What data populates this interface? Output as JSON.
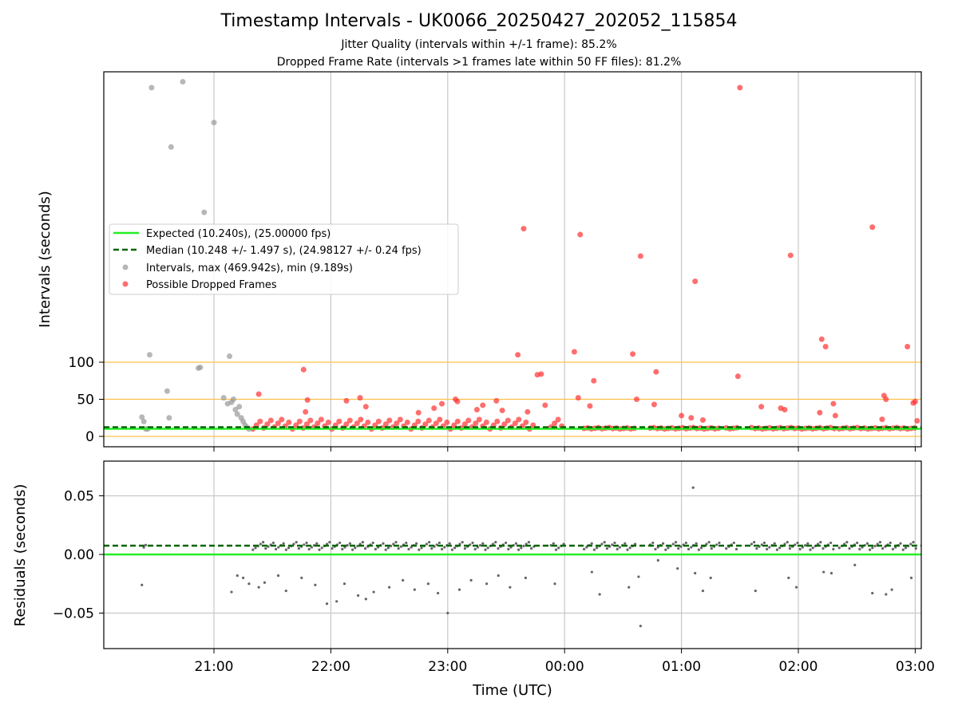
{
  "title": "Timestamp Intervals - UK0066_20250427_202052_115854",
  "subtitle_1": "Jitter Quality (intervals within +/-1 frame): 85.2%",
  "subtitle_2": "Dropped Frame Rate (intervals >1 frames late within 50 FF files): 81.2%",
  "colors": {
    "expected": "#22ee22",
    "median": "#006400",
    "intervals": "#999999",
    "dropped": "#ff3030",
    "threshold": "#ffc04d",
    "grid": "#c8c8c8",
    "residuals": "#666666"
  },
  "chart_data": [
    {
      "type": "scatter",
      "xlabel": "",
      "ylabel": "Intervals (seconds)",
      "y_ticks": [
        0,
        50,
        100
      ],
      "x_ticks": [
        "21:00",
        "22:00",
        "23:00",
        "00:00",
        "01:00",
        "02:00",
        "03:00"
      ],
      "threshold_lines": [
        0,
        50,
        100
      ],
      "legend": {
        "placement": "center-left",
        "entries": [
          "Expected (10.240s), (25.00000 fps)",
          "Median (10.248 +/- 1.497 s), (24.98127 +/- 0.24 fps)",
          "Intervals, max (469.942s), min (9.189s)",
          "Possible Dropped Frames"
        ]
      },
      "expected_line": 10.24,
      "median_line": 10.248,
      "series": [
        {
          "name": "Intervals, max (469.942s), min (9.189s)",
          "points": [
            [
              "20:23",
              26
            ],
            [
              "20:24",
              20
            ],
            [
              "20:25",
              10
            ],
            [
              "20:26",
              10
            ],
            [
              "20:27",
              110
            ],
            [
              "20:28",
              470
            ],
            [
              "20:36",
              61
            ],
            [
              "20:37",
              25
            ],
            [
              "20:38",
              390
            ],
            [
              "20:44",
              478
            ],
            [
              "20:52",
              92
            ],
            [
              "20:53",
              93
            ],
            [
              "20:55",
              302
            ],
            [
              "21:00",
              423
            ],
            [
              "21:05",
              52
            ],
            [
              "21:07",
              44
            ],
            [
              "21:08",
              108
            ],
            [
              "21:09",
              46
            ],
            [
              "21:10",
              50
            ],
            [
              "21:11",
              36
            ],
            [
              "21:12",
              30
            ],
            [
              "21:13",
              40
            ],
            [
              "21:14",
              25
            ],
            [
              "21:15",
              20
            ],
            [
              "21:16",
              15
            ],
            [
              "21:17",
              12
            ],
            [
              "21:18",
              10
            ]
          ]
        },
        {
          "name": "Possible Dropped Frames",
          "points": [
            [
              "21:23",
              57
            ],
            [
              "21:46",
              90
            ],
            [
              "21:47",
              33
            ],
            [
              "21:48",
              49
            ],
            [
              "22:08",
              48
            ],
            [
              "22:15",
              52
            ],
            [
              "22:18",
              40
            ],
            [
              "22:45",
              32
            ],
            [
              "22:53",
              38
            ],
            [
              "22:57",
              44
            ],
            [
              "23:04",
              50
            ],
            [
              "23:05",
              47
            ],
            [
              "23:15",
              36
            ],
            [
              "23:18",
              42
            ],
            [
              "23:25",
              48
            ],
            [
              "23:28",
              35
            ],
            [
              "23:36",
              110
            ],
            [
              "23:39",
              280
            ],
            [
              "23:41",
              33
            ],
            [
              "23:46",
              83
            ],
            [
              "23:48",
              84
            ],
            [
              "23:50",
              42
            ],
            [
              "00:05",
              114
            ],
            [
              "00:07",
              52
            ],
            [
              "00:08",
              272
            ],
            [
              "00:13",
              41
            ],
            [
              "00:15",
              75
            ],
            [
              "00:35",
              111
            ],
            [
              "00:37",
              50
            ],
            [
              "00:39",
              243
            ],
            [
              "00:46",
              43
            ],
            [
              "00:47",
              87
            ],
            [
              "01:00",
              28
            ],
            [
              "01:05",
              25
            ],
            [
              "01:07",
              209
            ],
            [
              "01:11",
              22
            ],
            [
              "01:29",
              81
            ],
            [
              "01:30",
              470
            ],
            [
              "01:41",
              40
            ],
            [
              "01:51",
              38
            ],
            [
              "01:53",
              36
            ],
            [
              "01:56",
              244
            ],
            [
              "02:11",
              32
            ],
            [
              "02:12",
              131
            ],
            [
              "02:14",
              121
            ],
            [
              "02:18",
              44
            ],
            [
              "02:19",
              28
            ],
            [
              "02:43",
              23
            ],
            [
              "02:44",
              55
            ],
            [
              "02:45",
              50
            ],
            [
              "02:38",
              282
            ],
            [
              "02:56",
              121
            ],
            [
              "02:59",
              45
            ],
            [
              "03:00",
              47
            ],
            [
              "03:01",
              21
            ]
          ]
        }
      ]
    },
    {
      "type": "scatter",
      "xlabel": "Time (UTC)",
      "ylabel": "Residuals (seconds)",
      "y_ticks": [
        "−0.05",
        "0.00",
        "0.05"
      ],
      "x_ticks": [
        "21:00",
        "22:00",
        "23:00",
        "00:00",
        "01:00",
        "02:00",
        "03:00"
      ],
      "ylim": [
        -0.08,
        0.08
      ],
      "expected_residual": 0.0,
      "median_residual": 0.0075,
      "series": [
        {
          "name": "residuals",
          "points": [
            [
              "20:23",
              -0.026
            ],
            [
              "20:24",
              0.006
            ],
            [
              "20:25",
              0.008
            ],
            [
              "21:09",
              -0.032
            ],
            [
              "21:12",
              -0.018
            ],
            [
              "21:15",
              -0.02
            ],
            [
              "21:18",
              -0.025
            ],
            [
              "21:23",
              -0.028
            ],
            [
              "21:26",
              -0.024
            ],
            [
              "21:33",
              -0.018
            ],
            [
              "21:37",
              -0.031
            ],
            [
              "21:45",
              -0.02
            ],
            [
              "21:52",
              -0.026
            ],
            [
              "21:58",
              -0.042
            ],
            [
              "22:03",
              -0.04
            ],
            [
              "22:07",
              -0.025
            ],
            [
              "22:14",
              -0.035
            ],
            [
              "22:18",
              -0.038
            ],
            [
              "22:22",
              -0.032
            ],
            [
              "22:30",
              -0.028
            ],
            [
              "22:37",
              -0.022
            ],
            [
              "22:43",
              -0.03
            ],
            [
              "22:50",
              -0.025
            ],
            [
              "22:55",
              -0.033
            ],
            [
              "23:00",
              -0.05
            ],
            [
              "23:06",
              -0.03
            ],
            [
              "23:12",
              -0.022
            ],
            [
              "23:20",
              -0.025
            ],
            [
              "23:26",
              -0.018
            ],
            [
              "23:32",
              -0.028
            ],
            [
              "23:40",
              -0.02
            ],
            [
              "23:55",
              -0.025
            ],
            [
              "00:14",
              -0.015
            ],
            [
              "00:18",
              -0.034
            ],
            [
              "00:33",
              -0.028
            ],
            [
              "00:38",
              -0.019
            ],
            [
              "00:39",
              -0.061
            ],
            [
              "00:48",
              -0.005
            ],
            [
              "00:58",
              -0.012
            ],
            [
              "01:06",
              0.057
            ],
            [
              "01:07",
              -0.016
            ],
            [
              "01:11",
              -0.031
            ],
            [
              "01:15",
              -0.02
            ],
            [
              "01:38",
              -0.031
            ],
            [
              "01:55",
              -0.02
            ],
            [
              "01:59",
              -0.028
            ],
            [
              "02:13",
              -0.015
            ],
            [
              "02:17",
              -0.016
            ],
            [
              "02:29",
              -0.009
            ],
            [
              "02:38",
              -0.033
            ],
            [
              "02:45",
              -0.034
            ],
            [
              "02:48",
              -0.03
            ],
            [
              "02:58",
              -0.02
            ]
          ]
        }
      ]
    }
  ]
}
